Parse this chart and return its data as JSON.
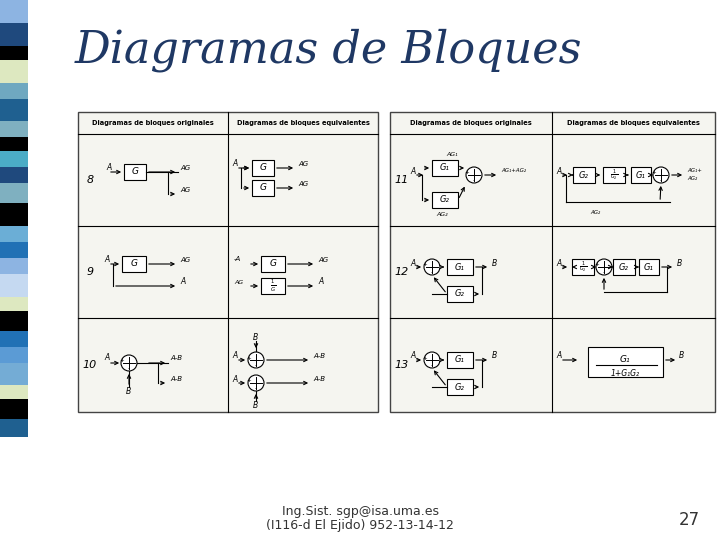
{
  "title": "Diagramas de Bloques",
  "title_color": "#1F3864",
  "title_fontsize": 32,
  "bg_color": "#ffffff",
  "footer_line1": "Ing.Sist. sgp@isa.uma.es",
  "footer_line2": "(I116-d El Ejido) 952-13-14-12",
  "page_number": "27",
  "bar_colors": [
    "#8db4e2",
    "#1f497d",
    "#000000",
    "#dde8c0",
    "#6fa8c0",
    "#1f6090",
    "#7fb0c0",
    "#000000",
    "#4bacc6",
    "#1f497d",
    "#7fb0c0",
    "#000000",
    "#6baed6",
    "#2171b5",
    "#8db4e2",
    "#c5d9f1",
    "#dde8c0",
    "#000000",
    "#2171b5",
    "#5b9bd5",
    "#74acd5",
    "#dde8c0",
    "#000000",
    "#1f6090"
  ],
  "bar_heights": [
    23,
    23,
    14,
    23,
    16,
    22,
    16,
    14,
    16,
    16,
    20,
    23,
    16,
    16,
    16,
    23,
    14,
    20,
    16,
    16,
    22,
    14,
    20,
    18
  ]
}
